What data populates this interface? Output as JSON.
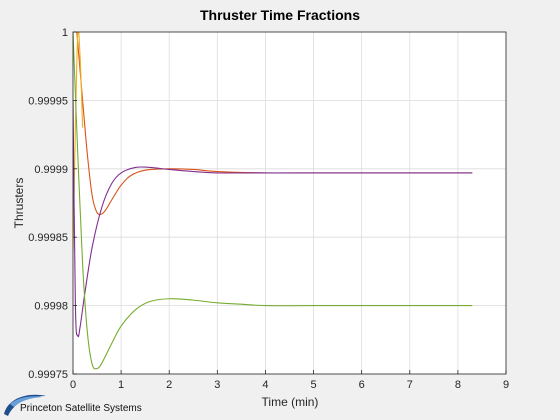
{
  "chart_data": {
    "type": "line",
    "title": "Thruster Time Fractions",
    "xlabel": "Time (min)",
    "ylabel": "Thrusters",
    "xlim": [
      0,
      9
    ],
    "ylim": [
      0.99975,
      1
    ],
    "x_ticks": [
      "0",
      "1",
      "2",
      "3",
      "4",
      "5",
      "6",
      "7",
      "8",
      "9"
    ],
    "y_ticks": [
      "0.99975",
      "0.9998",
      "0.99985",
      "0.9999",
      "0.99995",
      "1"
    ],
    "grid": true,
    "legend": "none",
    "series": [
      {
        "color": "#D95319",
        "x": [
          0.08,
          0.2,
          0.3,
          0.4,
          0.5,
          0.6,
          0.7,
          0.8,
          1.0,
          1.2,
          1.5,
          2.0,
          2.5,
          3.0,
          4.0,
          5.0,
          6.0,
          7.0,
          8.3
        ],
        "y": [
          1.0,
          0.99995,
          0.99991,
          0.99988,
          0.999868,
          0.999867,
          0.999871,
          0.999877,
          0.999888,
          0.999895,
          0.999899,
          0.9999,
          0.9998995,
          0.999898,
          0.999897,
          0.999897,
          0.999897,
          0.999897,
          0.999897
        ]
      },
      {
        "color": "#EDB120",
        "x": [
          0.0,
          0.05,
          0.1,
          0.15,
          0.2
        ],
        "y": [
          0.99984,
          0.99993,
          1.0,
          0.99998,
          0.99993
        ]
      },
      {
        "color": "#7E2F8E",
        "x": [
          0.0,
          0.05,
          0.1,
          0.15,
          0.25,
          0.4,
          0.6,
          0.8,
          1.0,
          1.3,
          1.6,
          2.0,
          2.5,
          3.0,
          4.0,
          5.0,
          6.0,
          7.0,
          8.3
        ],
        "y": [
          0.99995,
          0.9998,
          0.999778,
          0.999785,
          0.99981,
          0.999843,
          0.999872,
          0.999889,
          0.999897,
          0.999901,
          0.999901,
          0.9998995,
          0.999898,
          0.999897,
          0.999897,
          0.999897,
          0.999897,
          0.999897,
          0.999897
        ]
      },
      {
        "color": "#77AC30",
        "x": [
          0.0,
          0.1,
          0.2,
          0.3,
          0.4,
          0.5,
          0.6,
          0.8,
          1.0,
          1.3,
          1.6,
          2.0,
          2.5,
          3.0,
          3.5,
          4.0,
          5.0,
          6.0,
          7.0,
          8.3
        ],
        "y": [
          1.0,
          0.99991,
          0.99983,
          0.99978,
          0.999757,
          0.999754,
          0.999758,
          0.999772,
          0.999785,
          0.999797,
          0.999803,
          0.999805,
          0.999804,
          0.999802,
          0.999801,
          0.9998,
          0.9998,
          0.9998,
          0.9998,
          0.9998
        ]
      }
    ]
  },
  "logo": {
    "text": "Princeton Satellite Systems",
    "colors": {
      "primary": "#1f4e8c",
      "secondary": "#6aa0d8"
    }
  },
  "colors": {
    "background": "#f0f0f0",
    "axes_background": "#ffffff",
    "grid": "#dcdcdc",
    "axis": "#262626"
  }
}
